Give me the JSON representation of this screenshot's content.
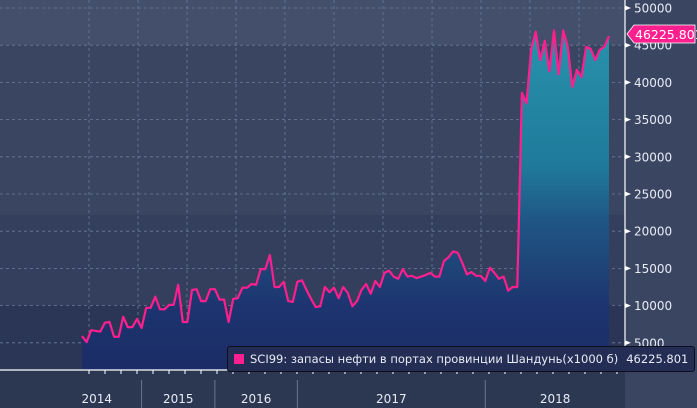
{
  "chart_data": {
    "type": "area",
    "title": "",
    "xlabel": "",
    "ylabel": "",
    "ylim": [
      0,
      50000
    ],
    "yticks": [
      5000,
      10000,
      15000,
      20000,
      25000,
      30000,
      35000,
      40000,
      45000,
      50000
    ],
    "ytick_labels": [
      "5000",
      "10000",
      "15000",
      "20000",
      "25000",
      "30000",
      "35000",
      "40000",
      "45000",
      "50000"
    ],
    "x_year_labels": [
      "2014",
      "2015",
      "2016",
      "2017",
      "2018"
    ],
    "grid": true,
    "legend_placement": "bottom-right",
    "series": [
      {
        "name": "SCI99: запасы нефти в портах провинции Шандунь(x1000 б)",
        "color": "#ff1f8e",
        "last_value_label": "46225.801",
        "values": [
          5900,
          5100,
          6700,
          6600,
          6500,
          7700,
          7800,
          5800,
          5800,
          8500,
          7100,
          7100,
          8200,
          7000,
          9700,
          9700,
          11200,
          9500,
          9500,
          10100,
          10100,
          12800,
          7800,
          7800,
          12100,
          12200,
          10600,
          10600,
          12200,
          12200,
          10800,
          10800,
          7800,
          10900,
          11000,
          12400,
          12400,
          12900,
          12800,
          14900,
          14900,
          16800,
          12500,
          12500,
          13200,
          10600,
          10500,
          13200,
          13400,
          12100,
          10900,
          9800,
          9900,
          12500,
          11800,
          12400,
          11000,
          12500,
          11700,
          9900,
          10600,
          12100,
          12900,
          11600,
          13300,
          12500,
          14400,
          14700,
          13900,
          13600,
          14900,
          13900,
          14000,
          13700,
          13900,
          14100,
          14400,
          13900,
          13900,
          16000,
          16500,
          17300,
          17100,
          15700,
          14200,
          14500,
          14000,
          14000,
          13300,
          15100,
          14400,
          13600,
          13900,
          12000,
          12500,
          12500,
          38600,
          37200,
          44400,
          46800,
          43000,
          45600,
          41500,
          47000,
          41100,
          47000,
          44800,
          39400,
          41700,
          40700,
          44800,
          44500,
          43000,
          44400,
          44800,
          46225.801
        ]
      }
    ]
  },
  "legend": {
    "label": "SCI99: запасы нефти в портах провинции Шандунь(x1000 б)",
    "value": "46225.801"
  }
}
